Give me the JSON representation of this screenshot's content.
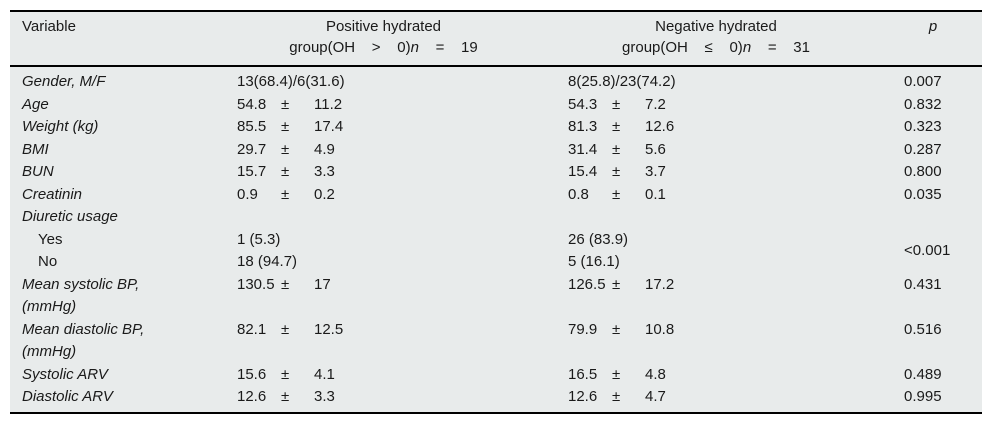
{
  "table": {
    "header": {
      "variable": "Variable",
      "group1": {
        "line1": "Positive hydrated",
        "line2_pre": "group(OH    >    0)",
        "line2_n": "n",
        "line2_post": "    =    19"
      },
      "group2": {
        "line1": "Negative hydrated",
        "line2_pre": "group(OH    ≤    0)",
        "line2_n": "n",
        "line2_post": "    =    31"
      },
      "p": "p"
    },
    "symbols": {
      "plus_minus": "±"
    },
    "rows": [
      {
        "label": "Gender, M/F",
        "g1": "13(68.4)/6(31.6)",
        "g2": "8(25.8)/23(74.2)",
        "p": "0.007"
      },
      {
        "label": "Age",
        "g1m": "54.8",
        "g1sd": "11.2",
        "g2m": "54.3",
        "g2sd": "7.2",
        "p": "0.832"
      },
      {
        "label": "Weight (kg)",
        "g1m": "85.5",
        "g1sd": "17.4",
        "g2m": "81.3",
        "g2sd": "12.6",
        "p": "0.323"
      },
      {
        "label": "BMI",
        "g1m": "29.7",
        "g1sd": "4.9",
        "g2m": "31.4",
        "g2sd": "5.6",
        "p": "0.287"
      },
      {
        "label": "BUN",
        "g1m": "15.7",
        "g1sd": "3.3",
        "g2m": "15.4",
        "g2sd": "3.7",
        "p": "0.800"
      },
      {
        "label": "Creatinin",
        "g1m": "0.9",
        "g1sd": "0.2",
        "g2m": "0.8",
        "g2sd": "0.1",
        "p": "0.035"
      },
      {
        "label": "Diuretic usage"
      }
    ],
    "diuretic": {
      "yes": {
        "label": "Yes",
        "g1": "1 (5.3)",
        "g2": "26 (83.9)"
      },
      "no": {
        "label": "No",
        "g1": "18 (94.7)",
        "g2": "5 (16.1)"
      },
      "p": "<0.001"
    },
    "rows2": [
      {
        "label": "Mean systolic BP,",
        "label2": "(mmHg)",
        "g1m": "130.5",
        "g1sd": "17",
        "g2m": "126.5",
        "g2sd": "17.2",
        "p": "0.431"
      },
      {
        "label": "Mean diastolic BP,",
        "label2": "(mmHg)",
        "g1m": "82.1",
        "g1sd": "12.5",
        "g2m": "79.9",
        "g2sd": "10.8",
        "p": "0.516"
      },
      {
        "label": "Systolic ARV",
        "g1m": "15.6",
        "g1sd": "4.1",
        "g2m": "16.5",
        "g2sd": "4.8",
        "p": "0.489"
      },
      {
        "label": "Diastolic ARV",
        "g1m": "12.6",
        "g1sd": "3.3",
        "g2m": "12.6",
        "g2sd": "4.7",
        "p": "0.995"
      }
    ],
    "colors": {
      "table_background": "#e8ebeb",
      "rule": "#000000",
      "text": "#1a1a1a"
    }
  }
}
